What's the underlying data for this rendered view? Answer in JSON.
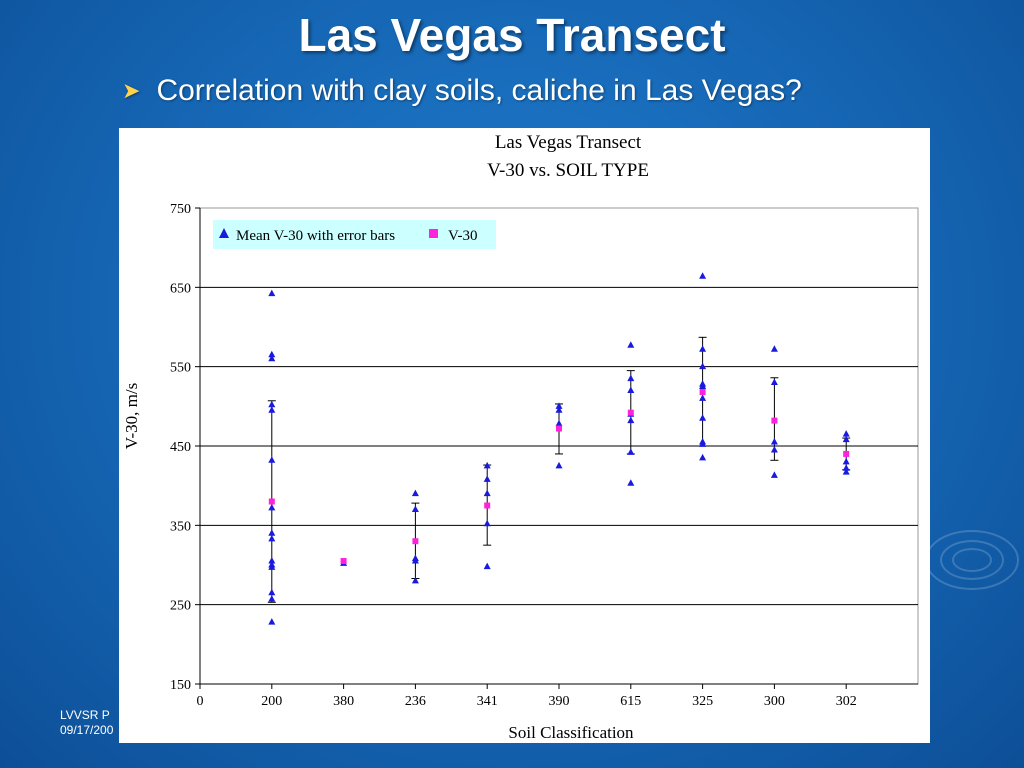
{
  "slide": {
    "title": "Las Vegas Transect",
    "bullet": "Correlation with clay soils, caliche in Las Vegas?",
    "footer_line1": "LVVSR P",
    "footer_line2": "09/17/200"
  },
  "colors": {
    "mean_marker": "#1a1adf",
    "v30_marker": "#ff22dd",
    "legend_bg": "#ccffff",
    "background": "#1565b3"
  },
  "chart_data": {
    "type": "scatter",
    "title_line1": "Las Vegas Transect",
    "title_line2": "V-30 vs. SOIL TYPE",
    "xlabel": "Soil Classification",
    "ylabel": "V-30, m/s",
    "ylim": [
      150,
      750
    ],
    "yticks": [
      150,
      250,
      350,
      450,
      550,
      650,
      750
    ],
    "x_zero_label": "0",
    "categories": [
      "200",
      "380",
      "236",
      "341",
      "390",
      "615",
      "325",
      "300",
      "302"
    ],
    "legend_position": "top-left",
    "gridlines": "horizontal",
    "series": [
      {
        "name": "Mean V-30 with error bars",
        "marker": "triangle",
        "points": [
          [
            1,
            642
          ],
          [
            1,
            565
          ],
          [
            1,
            560
          ],
          [
            1,
            502
          ],
          [
            1,
            495
          ],
          [
            1,
            432
          ],
          [
            1,
            372
          ],
          [
            1,
            340
          ],
          [
            1,
            333
          ],
          [
            1,
            305
          ],
          [
            1,
            300
          ],
          [
            1,
            297
          ],
          [
            1,
            265
          ],
          [
            1,
            257
          ],
          [
            1,
            228
          ],
          [
            2,
            302
          ],
          [
            3,
            390
          ],
          [
            3,
            370
          ],
          [
            3,
            308
          ],
          [
            3,
            305
          ],
          [
            3,
            280
          ],
          [
            4,
            425
          ],
          [
            4,
            408
          ],
          [
            4,
            390
          ],
          [
            4,
            352
          ],
          [
            4,
            298
          ],
          [
            5,
            500
          ],
          [
            5,
            495
          ],
          [
            5,
            478
          ],
          [
            5,
            425
          ],
          [
            6,
            577
          ],
          [
            6,
            535
          ],
          [
            6,
            520
          ],
          [
            6,
            490
          ],
          [
            6,
            482
          ],
          [
            6,
            442
          ],
          [
            6,
            403
          ],
          [
            7,
            664
          ],
          [
            7,
            572
          ],
          [
            7,
            550
          ],
          [
            7,
            528
          ],
          [
            7,
            525
          ],
          [
            7,
            510
          ],
          [
            7,
            485
          ],
          [
            7,
            455
          ],
          [
            7,
            452
          ],
          [
            7,
            435
          ],
          [
            8,
            572
          ],
          [
            8,
            530
          ],
          [
            8,
            455
          ],
          [
            8,
            445
          ],
          [
            8,
            413
          ],
          [
            9,
            465
          ],
          [
            9,
            458
          ],
          [
            9,
            430
          ],
          [
            9,
            422
          ],
          [
            9,
            417
          ]
        ]
      },
      {
        "name": "V-30",
        "marker": "square",
        "points": [
          [
            1,
            380
          ],
          [
            2,
            305
          ],
          [
            3,
            330
          ],
          [
            4,
            375
          ],
          [
            5,
            472
          ],
          [
            6,
            492
          ],
          [
            7,
            518
          ],
          [
            8,
            482
          ],
          [
            9,
            440
          ]
        ]
      }
    ],
    "error_bars": [
      {
        "x": 1,
        "low": 253,
        "high": 507
      },
      {
        "x": 3,
        "low": 283,
        "high": 378
      },
      {
        "x": 4,
        "low": 325,
        "high": 426
      },
      {
        "x": 5,
        "low": 440,
        "high": 503
      },
      {
        "x": 6,
        "low": 440,
        "high": 545
      },
      {
        "x": 7,
        "low": 450,
        "high": 587
      },
      {
        "x": 8,
        "low": 432,
        "high": 536
      },
      {
        "x": 9,
        "low": 420,
        "high": 460
      }
    ]
  }
}
